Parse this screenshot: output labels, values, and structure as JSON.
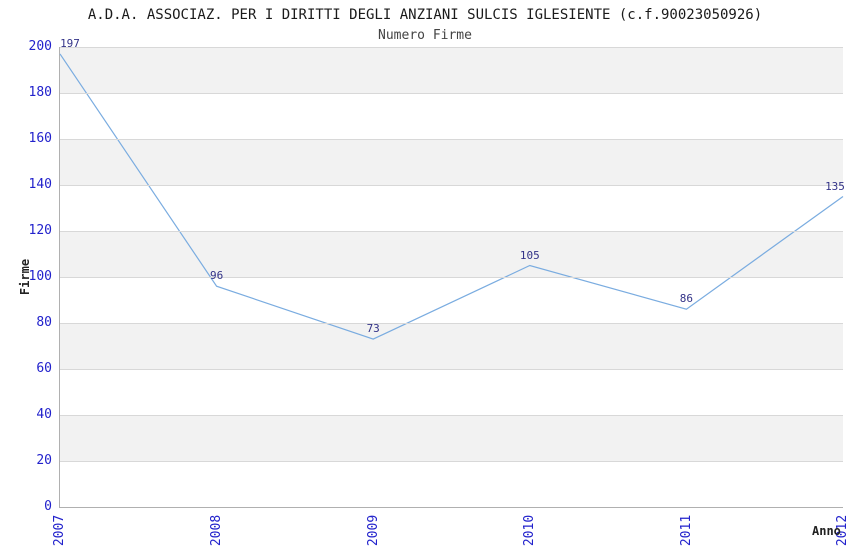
{
  "header": {
    "title": "A.D.A. ASSOCIAZ. PER I DIRITTI DEGLI ANZIANI SULCIS IGLESIENTE (c.f.90023050926)",
    "subtitle": "Numero Firme"
  },
  "chart_data": {
    "type": "line",
    "title": "A.D.A. ASSOCIAZ. PER I DIRITTI DEGLI ANZIANI SULCIS IGLESIENTE (c.f.90023050926)",
    "subtitle": "Numero Firme",
    "xlabel": "Anno",
    "ylabel": "Firme",
    "categories": [
      "2007",
      "2008",
      "2009",
      "2010",
      "2011",
      "2012"
    ],
    "values": [
      197,
      96,
      73,
      105,
      86,
      135
    ],
    "ylim": [
      0,
      200
    ],
    "ytick_step": 20,
    "yticks": [
      0,
      20,
      40,
      60,
      80,
      100,
      120,
      140,
      160,
      180,
      200
    ],
    "grid": "horizontal",
    "legend": "none",
    "colors": {
      "line": "#7aace0",
      "point_label": "#333388",
      "tick_label": "#2222cc",
      "gridline": "#d8d8d8",
      "band_gray": "#f2f2f2",
      "band_white": "#ffffff",
      "axis_spine": "#b0b0b0",
      "title_text": "#1a1a1a",
      "subtitle_text": "#444444"
    }
  }
}
